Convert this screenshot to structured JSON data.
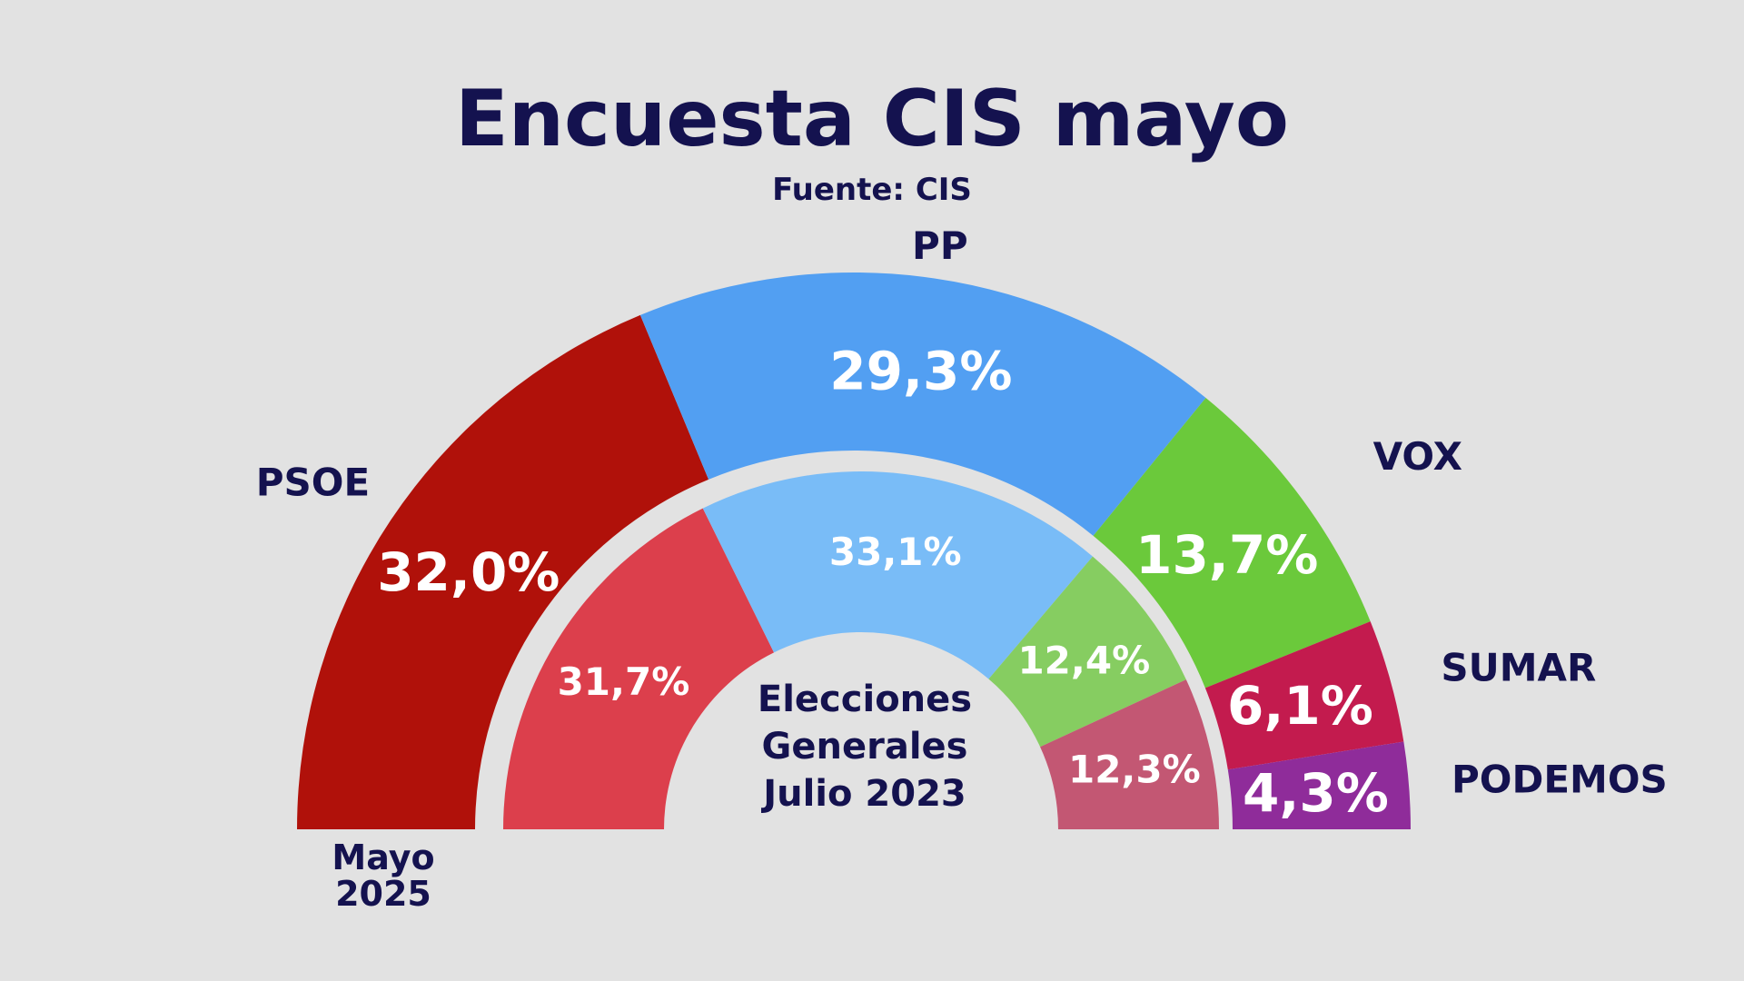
{
  "chart_data": {
    "type": "pie",
    "subtype": "nested-semicircle (parliament donut)",
    "title": "Encuesta CIS mayo",
    "subtitle": "Fuente: CIS",
    "order": [
      "PSOE",
      "PP",
      "VOX",
      "SUMAR",
      "PODEMOS"
    ],
    "series": [
      {
        "name": "Mayo 2025",
        "label_lines": [
          "Mayo",
          "2025"
        ],
        "ring": "outer",
        "values": {
          "PSOE": 32.0,
          "PP": 29.3,
          "VOX": 13.7,
          "SUMAR": 6.1,
          "PODEMOS": 4.3
        },
        "value_labels": {
          "PSOE": "32,0%",
          "PP": "29,3%",
          "VOX": "13,7%",
          "SUMAR": "6,1%",
          "PODEMOS": "4,3%"
        },
        "colors": {
          "PSOE": "#b0110a",
          "PP": "#529ff2",
          "VOX": "#6bc93b",
          "SUMAR": "#c31b4e",
          "PODEMOS": "#8f2c9a"
        }
      },
      {
        "name": "Elecciones Generales Julio 2023",
        "label_lines": [
          "Elecciones",
          "Generales",
          "Julio 2023"
        ],
        "ring": "inner",
        "values": {
          "PSOE": 31.7,
          "PP": 33.1,
          "VOX": 12.4,
          "SUMAR": 12.3
        },
        "value_labels": {
          "PSOE": "31,7%",
          "PP": "33,1%",
          "VOX": "12,4%",
          "SUMAR": "12,3%"
        },
        "colors": {
          "PSOE": "#dc3f4c",
          "PP": "#79bcf7",
          "VOX": "#86cd61",
          "SUMAR": "#c35773"
        }
      }
    ],
    "party_labels": [
      "PSOE",
      "PP",
      "VOX",
      "SUMAR",
      "PODEMOS"
    ],
    "background": "#e2e2e2",
    "text_color": "#14124f"
  }
}
